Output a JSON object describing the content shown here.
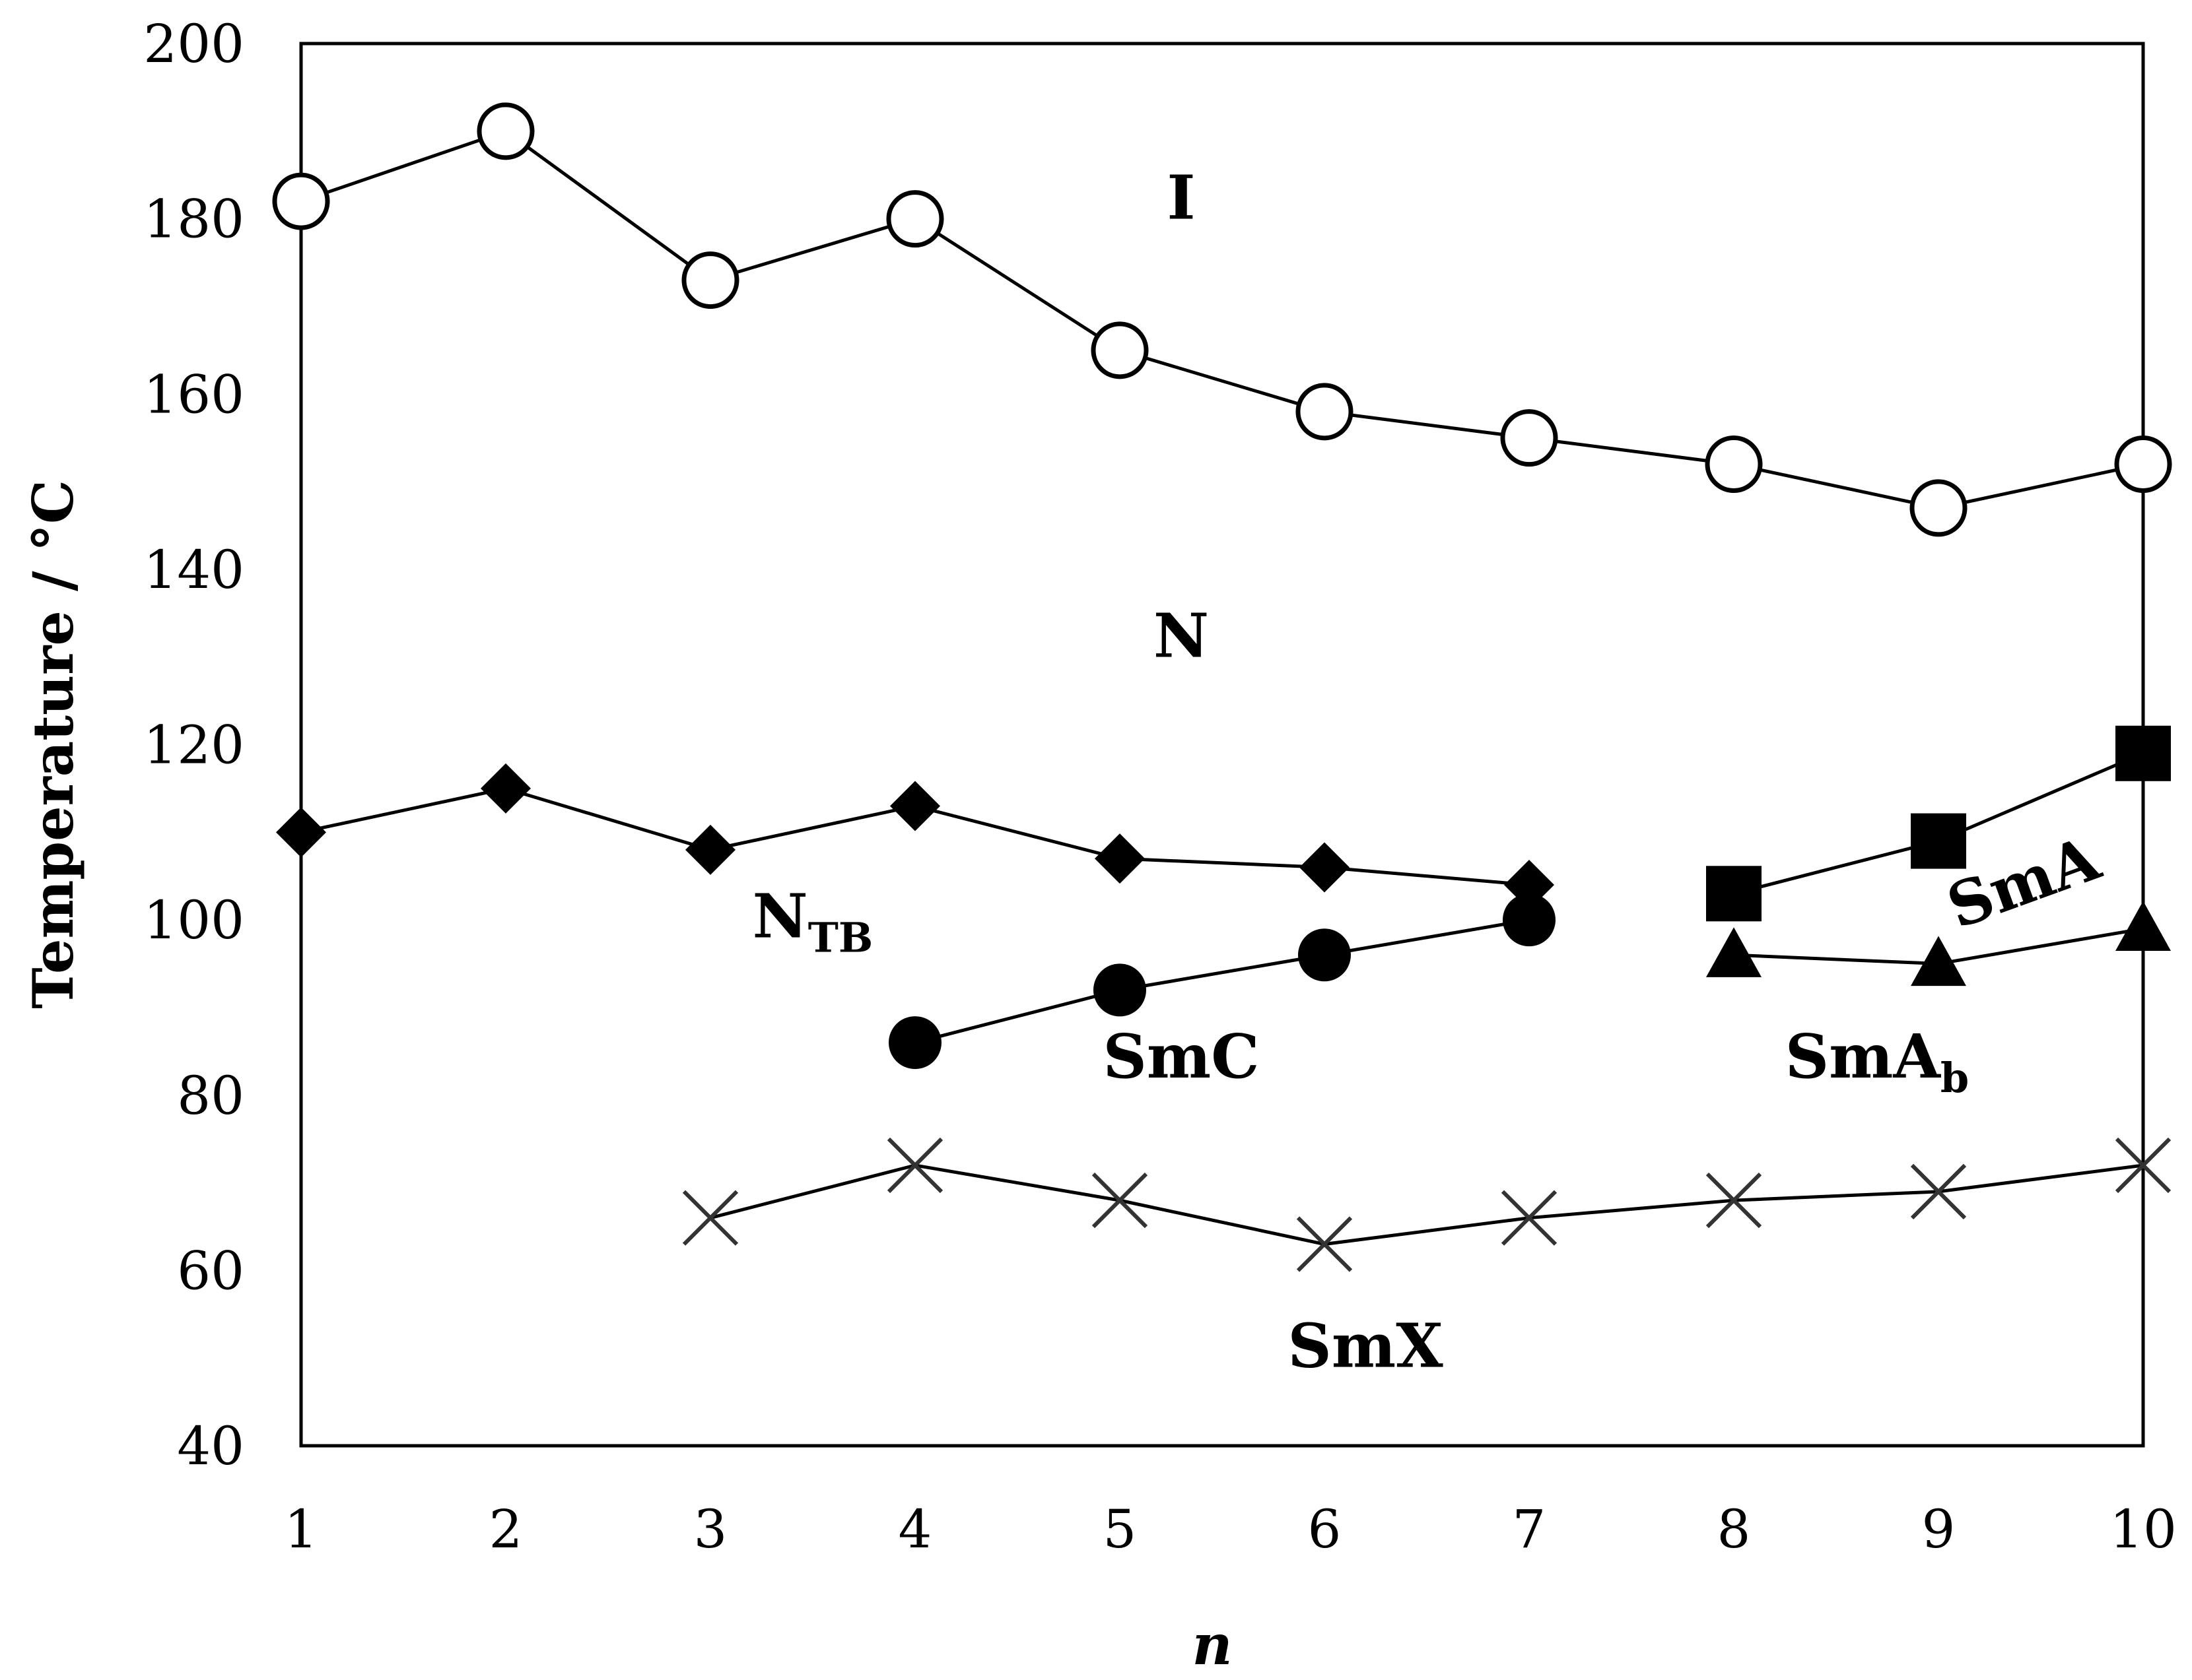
{
  "chart_data": {
    "type": "line",
    "xlabel": "n",
    "ylabel": "Temperature / °C",
    "xlim": [
      1,
      10
    ],
    "ylim": [
      40,
      200
    ],
    "x_ticks": [
      1,
      2,
      3,
      4,
      5,
      6,
      7,
      8,
      9,
      10
    ],
    "y_ticks": [
      40,
      60,
      80,
      100,
      120,
      140,
      160,
      180,
      200
    ],
    "grid": false,
    "legend": "none",
    "series": [
      {
        "marker": "open-circle",
        "color": "#000000",
        "x": [
          1,
          2,
          3,
          4,
          5,
          6,
          7,
          8,
          9,
          10
        ],
        "y": [
          182,
          190,
          173,
          180,
          165,
          158,
          155,
          152,
          147,
          152
        ]
      },
      {
        "marker": "filled-diamond",
        "color": "#000000",
        "x": [
          1,
          2,
          3,
          4,
          5,
          6,
          7
        ],
        "y": [
          110,
          115,
          108,
          113,
          107,
          106,
          104
        ]
      },
      {
        "marker": "filled-circle",
        "color": "#000000",
        "x": [
          4,
          5,
          6,
          7
        ],
        "y": [
          86,
          92,
          96,
          100
        ]
      },
      {
        "marker": "filled-square",
        "color": "#000000",
        "x": [
          8,
          9,
          10
        ],
        "y": [
          103,
          109,
          119
        ]
      },
      {
        "marker": "filled-triangle",
        "color": "#000000",
        "x": [
          8,
          9,
          10
        ],
        "y": [
          96,
          95,
          99
        ]
      },
      {
        "marker": "cross",
        "color": "#333333",
        "x": [
          3,
          4,
          5,
          6,
          7,
          8,
          9,
          10
        ],
        "y": [
          66,
          72,
          68,
          63,
          66,
          68,
          69,
          72
        ]
      }
    ],
    "annotations": [
      {
        "text": "I",
        "x": 5.3,
        "y": 180
      },
      {
        "text": "N",
        "x": 5.3,
        "y": 130
      },
      {
        "text": "N",
        "sub": "TB",
        "x": 3.5,
        "y": 98
      },
      {
        "text": "SmC",
        "x": 5.3,
        "y": 82
      },
      {
        "text": "SmA",
        "sub": "b",
        "x": 8.7,
        "y": 82
      },
      {
        "text": "SmA",
        "x": 9.45,
        "y": 102,
        "rotation": -20
      },
      {
        "text": "SmX",
        "x": 6.2,
        "y": 49
      }
    ]
  }
}
